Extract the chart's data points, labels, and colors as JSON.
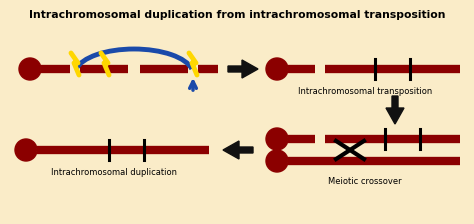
{
  "bg_color": "#faecc8",
  "chrom_color": "#8b0000",
  "title": "Intrachromosomal duplication from intrachromosomal transposition",
  "title_fontsize": 7.8,
  "label1": "Intrachromosomal transposition",
  "label2": "Meiotic crossover",
  "label3": "Intrachromosomal duplication",
  "arrow_color": "#111111",
  "blue_color": "#1a4aaa",
  "lw": 6,
  "tick_lw": 2.2,
  "circ_r": 0.13
}
